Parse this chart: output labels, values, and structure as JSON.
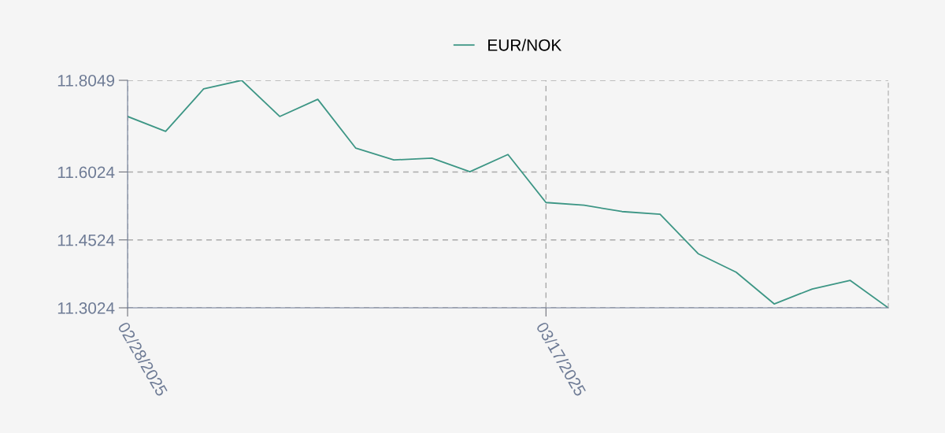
{
  "chart_data": {
    "type": "line",
    "categories": [
      "02/28/2025",
      null,
      null,
      null,
      null,
      null,
      null,
      null,
      null,
      null,
      null,
      "03/17/2025",
      null,
      null,
      null,
      null,
      null,
      null,
      null,
      null,
      null
    ],
    "series": [
      {
        "name": "EUR/NOK",
        "color": "#3d9685",
        "values": [
          11.725,
          11.692,
          11.786,
          11.8049,
          11.725,
          11.763,
          11.655,
          11.629,
          11.633,
          11.603,
          11.641,
          11.535,
          11.529,
          11.515,
          11.509,
          11.422,
          11.381,
          11.311,
          11.344,
          11.363,
          11.3024
        ]
      }
    ],
    "ylim": [
      11.3024,
      11.8049
    ],
    "yticks": [
      11.3024,
      11.4524,
      11.6024,
      11.8049
    ],
    "grid": true,
    "legend": "top",
    "line_style": "solid"
  }
}
